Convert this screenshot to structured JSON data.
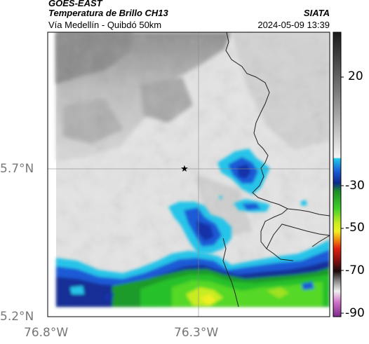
{
  "header": {
    "satellite": "GOES-EAST",
    "product": "Temperatura de Brillo CH13",
    "route": "Vía Medellín - Quibdó 50km",
    "source": "SIATA",
    "datetime": "2024-05-09 13:39"
  },
  "map": {
    "lat_ticks": [
      "5.7°N",
      "5.2°N"
    ],
    "lon_ticks": [
      "76.8°W",
      "76.3°W"
    ],
    "marker_icon": "star-icon"
  },
  "colorbar": {
    "ticks": [
      "20",
      "-30",
      "-50",
      "-70",
      "-90"
    ],
    "unit_hint": "°C"
  },
  "colors": {
    "warm_gray": "#d8d8d8",
    "cold_blue": "#1a5ad6",
    "cyan": "#27c8e8",
    "green": "#22c022",
    "yellow": "#e8f020",
    "border": "#222222"
  }
}
